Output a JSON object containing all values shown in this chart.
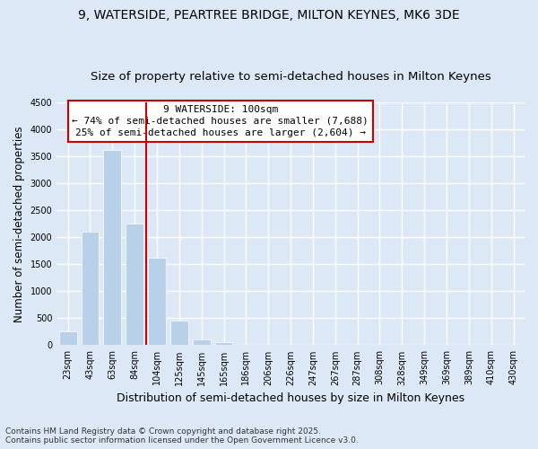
{
  "title": "9, WATERSIDE, PEARTREE BRIDGE, MILTON KEYNES, MK6 3DE",
  "subtitle": "Size of property relative to semi-detached houses in Milton Keynes",
  "xlabel": "Distribution of semi-detached houses by size in Milton Keynes",
  "ylabel": "Number of semi-detached properties",
  "categories": [
    "23sqm",
    "43sqm",
    "63sqm",
    "84sqm",
    "104sqm",
    "125sqm",
    "145sqm",
    "165sqm",
    "186sqm",
    "206sqm",
    "226sqm",
    "247sqm",
    "267sqm",
    "287sqm",
    "308sqm",
    "328sqm",
    "349sqm",
    "369sqm",
    "389sqm",
    "410sqm",
    "430sqm"
  ],
  "values": [
    250,
    2100,
    3620,
    2250,
    1620,
    450,
    100,
    50,
    0,
    0,
    0,
    0,
    0,
    0,
    0,
    0,
    0,
    0,
    0,
    0,
    0
  ],
  "bar_color": "#b8d0e8",
  "property_line_index": 4,
  "annotation_line1": "9 WATERSIDE: 100sqm",
  "annotation_line2": "← 74% of semi-detached houses are smaller (7,688)",
  "annotation_line3": "25% of semi-detached houses are larger (2,604) →",
  "ylim": [
    0,
    4500
  ],
  "yticks": [
    0,
    500,
    1000,
    1500,
    2000,
    2500,
    3000,
    3500,
    4000,
    4500
  ],
  "footer_line1": "Contains HM Land Registry data © Crown copyright and database right 2025.",
  "footer_line2": "Contains public sector information licensed under the Open Government Licence v3.0.",
  "background_color": "#dce8f5",
  "plot_background": "#dce8f5",
  "grid_color": "#ffffff",
  "annotation_box_color": "#ffffff",
  "annotation_border_color": "#cc0000",
  "property_line_color": "#cc0000",
  "title_fontsize": 10,
  "subtitle_fontsize": 9.5,
  "tick_fontsize": 7,
  "ylabel_fontsize": 8.5,
  "xlabel_fontsize": 9,
  "annotation_fontsize": 8,
  "footer_fontsize": 6.5
}
